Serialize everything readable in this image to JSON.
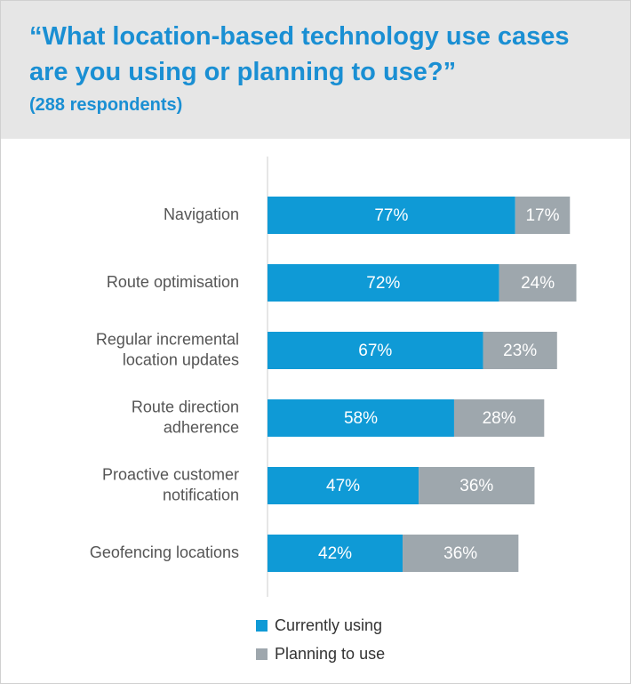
{
  "chart_data": {
    "type": "stacked_bar_horizontal",
    "title": "“What location-based technology use cases\nare you using or planning to use?”",
    "subtitle": "(288 respondents)",
    "categories": [
      "Navigation",
      "Route optimisation",
      "Regular incremental\nlocation updates",
      "Route direction\nadherence",
      "Proactive customer\nnotification",
      "Geofencing locations"
    ],
    "series": [
      {
        "name": "Currently using",
        "color": "#0f9ad6",
        "values": [
          77,
          72,
          67,
          58,
          47,
          42
        ],
        "value_labels": [
          "77%",
          "72%",
          "67%",
          "58%",
          "47%",
          "42%"
        ]
      },
      {
        "name": "Planning to use",
        "color": "#9ea7ad",
        "values": [
          17,
          24,
          23,
          28,
          36,
          36
        ],
        "value_labels": [
          "17%",
          "24%",
          "23%",
          "28%",
          "36%",
          "36%"
        ]
      }
    ]
  }
}
